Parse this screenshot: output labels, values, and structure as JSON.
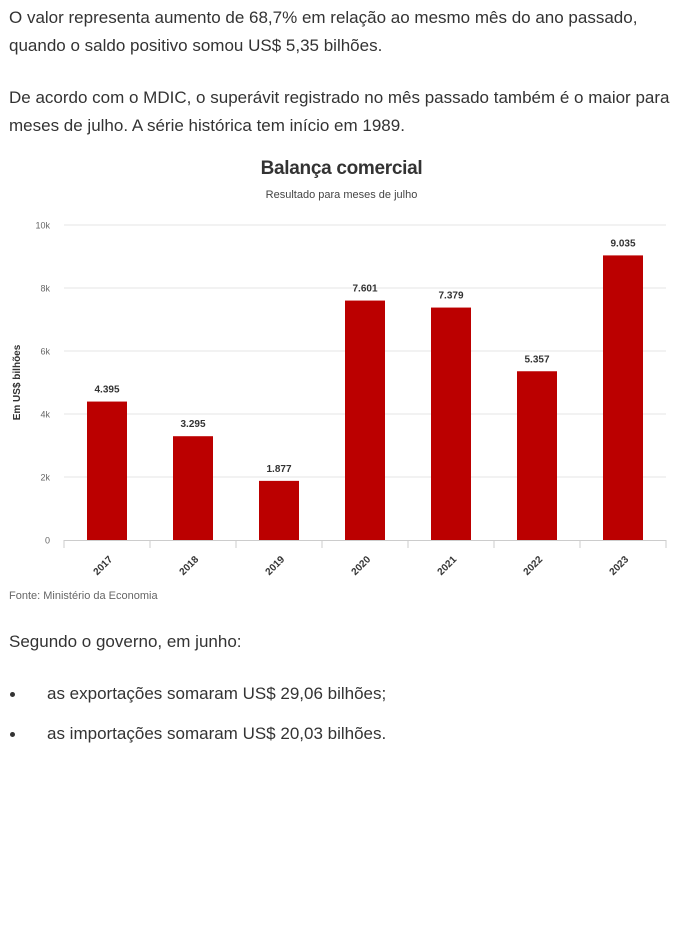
{
  "article": {
    "para1": "O valor representa aumento de 68,7% em relação ao mesmo mês do ano passado, quando o saldo positivo somou US$ 5,35 bilhões.",
    "para2": "De acordo com o MDIC, o superávit registrado no mês passado também é o maior para meses de julho. A série histórica tem início em 1989.",
    "para3": "Segundo o governo, em junho:",
    "bullets": [
      "as exportações somaram US$ 29,06 bilhões;",
      "as importações somaram US$ 20,03 bilhões."
    ],
    "source": "Fonte: Ministério da Economia"
  },
  "chart_data": {
    "type": "bar",
    "title": "Balança comercial",
    "subtitle": "Resultado para meses de julho",
    "xlabel": "",
    "ylabel": "Em US$ bilhões",
    "categories": [
      "2017",
      "2018",
      "2019",
      "2020",
      "2021",
      "2022",
      "2023"
    ],
    "values": [
      4395,
      3295,
      1877,
      7601,
      7379,
      5357,
      9035
    ],
    "data_labels": [
      "4.395",
      "3.295",
      "1.877",
      "7.601",
      "7.379",
      "5.357",
      "9.035"
    ],
    "ylim": [
      0,
      10000
    ],
    "yticks": [
      0,
      2000,
      4000,
      6000,
      8000,
      10000
    ],
    "ytick_labels": [
      "0",
      "2k",
      "4k",
      "6k",
      "8k",
      "10k"
    ],
    "grid": true,
    "legend": "none",
    "bar_color": "#bb0000"
  }
}
